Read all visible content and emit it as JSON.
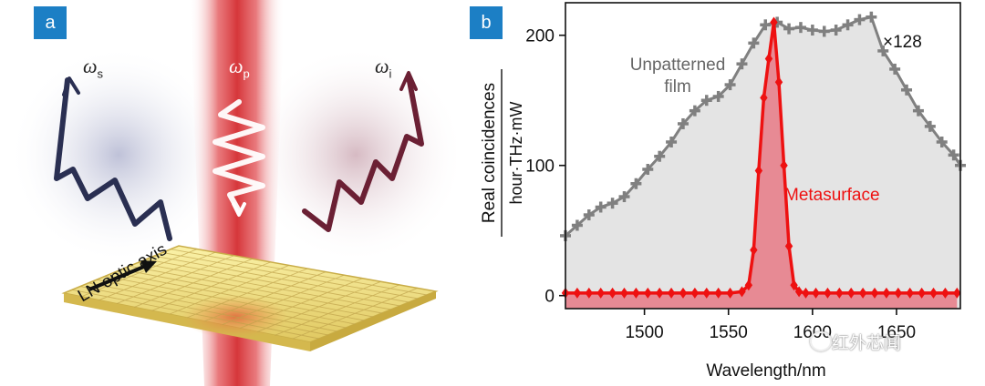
{
  "panel_a": {
    "badge": "a",
    "signal_symbol": "ω",
    "signal_sub": "s",
    "pump_symbol": "ω",
    "pump_sub": "p",
    "idler_symbol": "ω",
    "idler_sub": "i",
    "axis_label": "LN optic axis",
    "colors": {
      "pump": "#d8383a",
      "signal": "#2a2f52",
      "idler": "#6b2034",
      "slab": "#f2e07a"
    }
  },
  "panel_b": {
    "badge": "b",
    "film_label_line1": "Unpatterned",
    "film_label_line2": "film",
    "meta_label": "Metasurface",
    "scale_label": "×128",
    "watermark": "红外芯闻"
  },
  "chart_data": {
    "type": "line",
    "title": "",
    "xlabel": "Wavelength/nm",
    "ylabel": "Real coincidences",
    "ylabel_unit": "hour·THz·mW",
    "xlim": [
      1453,
      1688
    ],
    "ylim": [
      -10,
      225
    ],
    "xticks": [
      1500,
      1550,
      1600,
      1650
    ],
    "xtick_labels": [
      "1500",
      "1550",
      "1600",
      "1650"
    ],
    "yticks": [
      0,
      100,
      200
    ],
    "ytick_labels": [
      "0",
      "100",
      "200"
    ],
    "series": [
      {
        "name": "Unpatterned film",
        "color": "#808080",
        "fill": "#e4e4e4",
        "marker": "plus",
        "x": [
          1453,
          1460,
          1467,
          1474,
          1481,
          1488,
          1495,
          1502,
          1509,
          1516,
          1523,
          1530,
          1537,
          1544,
          1551,
          1558,
          1565,
          1572,
          1579,
          1586,
          1593,
          1600,
          1607,
          1614,
          1621,
          1628,
          1635,
          1642,
          1649,
          1656,
          1663,
          1670,
          1677,
          1684,
          1688
        ],
        "y": [
          46,
          54,
          62,
          68,
          71,
          76,
          86,
          97,
          107,
          118,
          132,
          142,
          150,
          153,
          162,
          178,
          194,
          208,
          210,
          205,
          206,
          204,
          203,
          204,
          208,
          212,
          214,
          188,
          174,
          158,
          142,
          130,
          118,
          108,
          100
        ]
      },
      {
        "name": "Metasurface",
        "color": "#ee1111",
        "fill": "#e87a86",
        "marker": "diamond",
        "x": [
          1453,
          1460,
          1467,
          1474,
          1481,
          1488,
          1495,
          1502,
          1509,
          1516,
          1523,
          1530,
          1537,
          1544,
          1551,
          1558,
          1562,
          1565,
          1568,
          1571,
          1574,
          1577,
          1580,
          1583,
          1586,
          1589,
          1592,
          1596,
          1602,
          1609,
          1616,
          1623,
          1630,
          1637,
          1644,
          1651,
          1658,
          1665,
          1672,
          1679,
          1686
        ],
        "y": [
          2,
          2,
          2,
          2,
          2,
          2,
          2,
          2,
          2,
          2,
          2,
          2,
          2,
          2,
          2,
          3,
          8,
          35,
          96,
          152,
          182,
          210,
          164,
          100,
          38,
          8,
          3,
          2,
          2,
          2,
          2,
          2,
          2,
          2,
          2,
          2,
          2,
          2,
          2,
          2,
          2
        ]
      }
    ]
  }
}
